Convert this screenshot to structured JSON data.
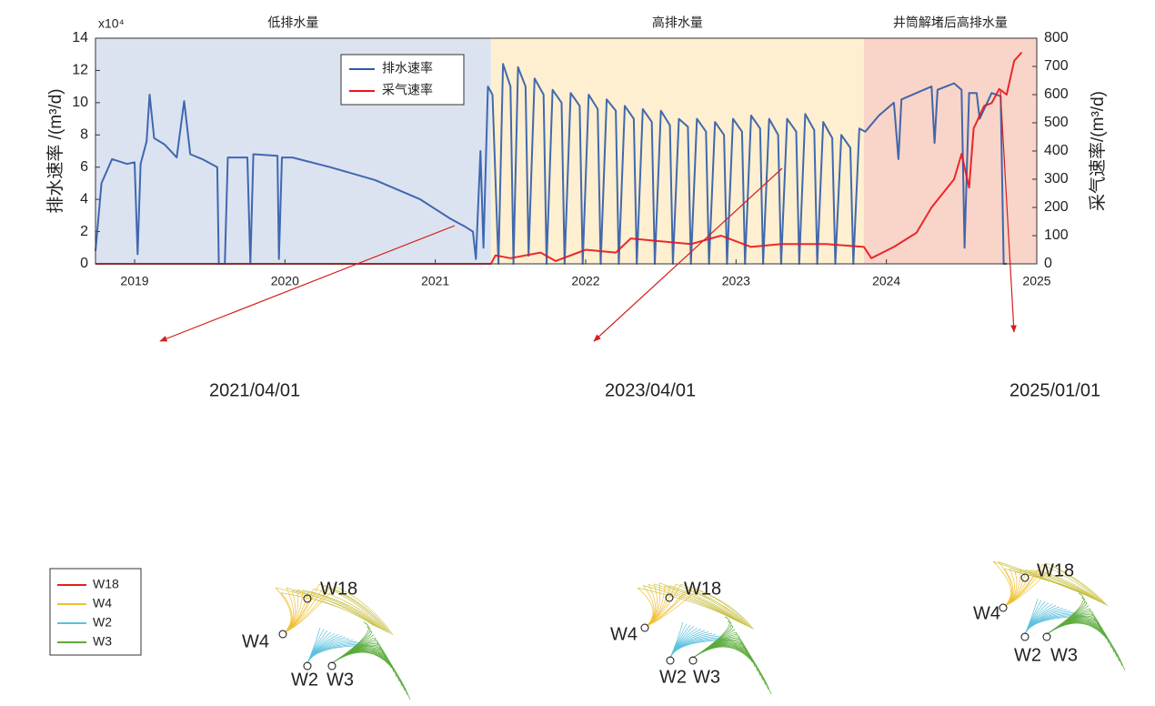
{
  "chart_data": {
    "type": "line",
    "y_multiplier": "x10⁴",
    "ylabel": "排水速率 /(m³/d)",
    "y2label": "采气速率/(m³/d)",
    "xlim": [
      2018.74,
      2025.0
    ],
    "xticks": [
      2019,
      2020,
      2021,
      2022,
      2023,
      2024,
      2025
    ],
    "ylim": [
      0,
      14
    ],
    "yticks": [
      0,
      2,
      4,
      6,
      8,
      10,
      12,
      14
    ],
    "y2lim": [
      0,
      800
    ],
    "y2ticks": [
      0,
      100,
      200,
      300,
      400,
      500,
      600,
      700,
      800
    ],
    "legend_position": "top-center",
    "regions": [
      {
        "label": "低排水量",
        "start": 2018.74,
        "end": 2021.37,
        "color": "#dce3f0"
      },
      {
        "label": "高排水量",
        "start": 2021.37,
        "end": 2023.85,
        "color": "#fdefd0"
      },
      {
        "label": "井筒解堵后高排水量",
        "start": 2023.85,
        "end": 2025.0,
        "color": "#f8d5c8"
      }
    ],
    "series": [
      {
        "name": "排水速率",
        "color": "#2e5aa8",
        "x": [
          2018.74,
          2018.78,
          2018.85,
          2018.95,
          2019.0,
          2019.02,
          2019.04,
          2019.08,
          2019.1,
          2019.13,
          2019.2,
          2019.28,
          2019.33,
          2019.37,
          2019.45,
          2019.55,
          2019.56,
          2019.6,
          2019.62,
          2019.75,
          2019.77,
          2019.79,
          2019.95,
          2019.96,
          2019.98,
          2020.05,
          2020.3,
          2020.6,
          2020.9,
          2021.0,
          2021.1,
          2021.2,
          2021.25,
          2021.27,
          2021.3,
          2021.32,
          2021.35,
          2021.38,
          2021.42,
          2021.45,
          2021.5,
          2021.52,
          2021.55,
          2021.6,
          2021.62,
          2021.66,
          2021.72,
          2021.74,
          2021.78,
          2021.84,
          2021.86,
          2021.9,
          2021.96,
          2021.98,
          2022.02,
          2022.08,
          2022.1,
          2022.14,
          2022.2,
          2022.22,
          2022.26,
          2022.32,
          2022.34,
          2022.38,
          2022.44,
          2022.46,
          2022.5,
          2022.56,
          2022.58,
          2022.62,
          2022.68,
          2022.7,
          2022.74,
          2022.8,
          2022.82,
          2022.86,
          2022.92,
          2022.94,
          2022.98,
          2023.04,
          2023.06,
          2023.1,
          2023.16,
          2023.18,
          2023.22,
          2023.28,
          2023.3,
          2023.34,
          2023.4,
          2023.42,
          2023.46,
          2023.52,
          2023.54,
          2023.58,
          2023.64,
          2023.66,
          2023.7,
          2023.76,
          2023.78,
          2023.82,
          2023.86,
          2023.95,
          2024.05,
          2024.08,
          2024.1,
          2024.2,
          2024.3,
          2024.32,
          2024.34,
          2024.45,
          2024.5,
          2024.52,
          2024.55,
          2024.6,
          2024.62,
          2024.7,
          2024.76,
          2024.78,
          2024.8
        ],
        "values": [
          0.8,
          5,
          6.5,
          6.2,
          6.3,
          0.6,
          6.2,
          7.6,
          10.5,
          7.8,
          7.4,
          6.6,
          10.1,
          6.8,
          6.5,
          6.0,
          0,
          0,
          6.6,
          6.6,
          0,
          6.8,
          6.7,
          0.3,
          6.6,
          6.6,
          6.0,
          5.2,
          4.0,
          3.4,
          2.8,
          2.3,
          2.0,
          0.3,
          7,
          1,
          11,
          10.5,
          0,
          12.4,
          11,
          0,
          12.2,
          11,
          0.5,
          11.5,
          10.5,
          0,
          10.8,
          10,
          0,
          10.6,
          9.8,
          0,
          10.5,
          9.6,
          0,
          10.2,
          9.5,
          0,
          9.8,
          9.0,
          0,
          9.6,
          8.8,
          0,
          9.5,
          8.6,
          0,
          9.0,
          8.5,
          0,
          9.0,
          8.2,
          0,
          8.8,
          8.0,
          0,
          9.0,
          8.2,
          0,
          9.2,
          8.4,
          0,
          9.0,
          8.0,
          0,
          9.0,
          8.2,
          0,
          9.3,
          8.3,
          0,
          8.8,
          7.8,
          0,
          8.0,
          7.2,
          0,
          8.4,
          8.2,
          9.2,
          10.0,
          6.5,
          10.2,
          10.6,
          11.0,
          7.5,
          10.8,
          11.2,
          10.8,
          1,
          10.6,
          10.6,
          9.0,
          10.6,
          10.4,
          0,
          0
        ]
      },
      {
        "name": "采气速率",
        "color": "#e8141b",
        "axis": "y2",
        "x": [
          2018.74,
          2021.37,
          2021.4,
          2021.5,
          2021.7,
          2021.8,
          2022.0,
          2022.2,
          2022.3,
          2022.5,
          2022.7,
          2022.9,
          2023.0,
          2023.1,
          2023.3,
          2023.6,
          2023.85,
          2023.9,
          2024.05,
          2024.2,
          2024.3,
          2024.45,
          2024.5,
          2024.55,
          2024.58,
          2024.65,
          2024.7,
          2024.75,
          2024.8,
          2024.85,
          2024.9
        ],
        "values": [
          0,
          0,
          30,
          20,
          40,
          10,
          50,
          40,
          90,
          80,
          70,
          100,
          80,
          60,
          70,
          70,
          60,
          20,
          60,
          110,
          200,
          300,
          390,
          270,
          480,
          560,
          570,
          620,
          600,
          720,
          750
        ]
      }
    ]
  },
  "panels": [
    {
      "date": "2021/04/01",
      "wells": [
        "W18",
        "W4",
        "W2",
        "W3"
      ]
    },
    {
      "date": "2023/04/01",
      "wells": [
        "W18",
        "W4",
        "W2",
        "W3"
      ]
    },
    {
      "date": "2025/01/01",
      "wells": [
        "W18",
        "W4",
        "W2",
        "W3"
      ]
    }
  ],
  "streamline_legend": [
    {
      "name": "W18",
      "color": "#e02020"
    },
    {
      "name": "W4",
      "color": "#f0c030"
    },
    {
      "name": "W2",
      "color": "#5bc0de"
    },
    {
      "name": "W3",
      "color": "#5aab3a"
    }
  ]
}
